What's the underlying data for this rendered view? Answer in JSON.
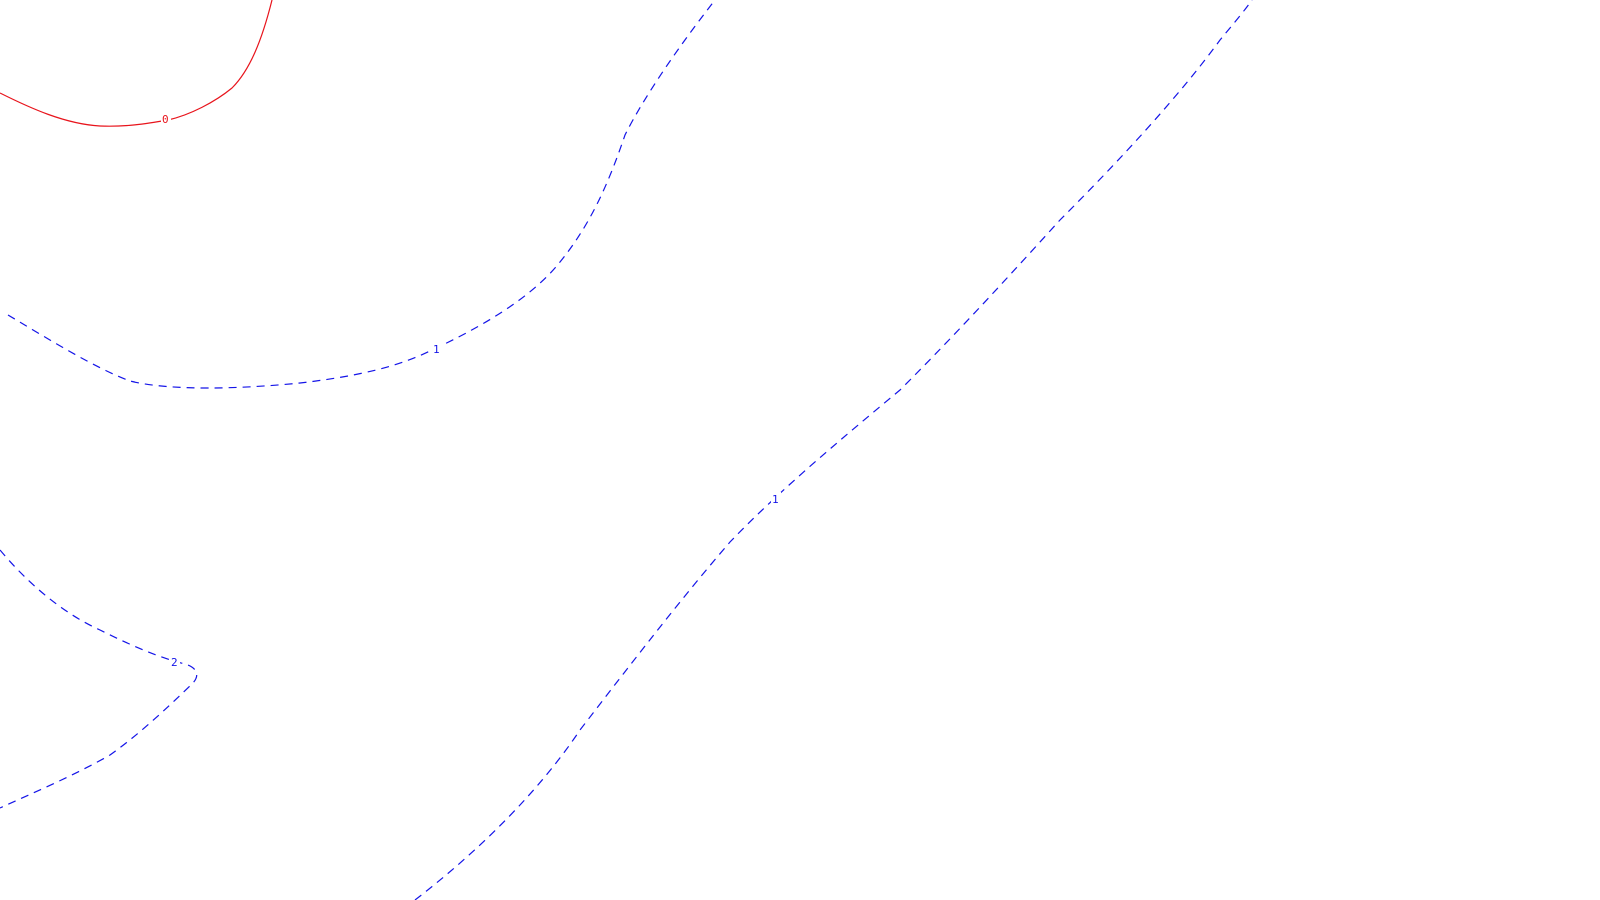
{
  "map": {
    "type": "contour-plot",
    "colors": {
      "background": "#ffffff",
      "zero_contour": "#e8141c",
      "positive_contour": "#1414e8"
    },
    "contours": [
      {
        "id": "contour-0",
        "level": "0",
        "color": "#e8141c",
        "style": "solid"
      },
      {
        "id": "contour-1-left",
        "level": "1",
        "color": "#1414e8",
        "style": "dashed"
      },
      {
        "id": "contour-1-diagonal",
        "level": "1",
        "color": "#1414e8",
        "style": "dashed"
      },
      {
        "id": "contour-2",
        "level": "2",
        "color": "#1414e8",
        "style": "dashed"
      }
    ]
  }
}
